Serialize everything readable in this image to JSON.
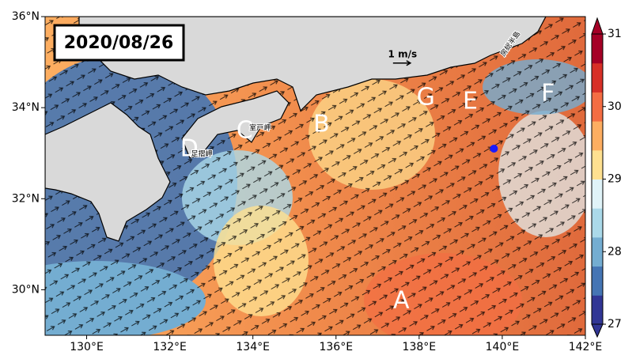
{
  "title": "2020/08/26",
  "xlim": [
    129,
    142
  ],
  "ylim": [
    29,
    36
  ],
  "xticks": [
    {
      "value": 130,
      "label": "130°E"
    },
    {
      "value": 132,
      "label": "132°E"
    },
    {
      "value": 134,
      "label": "134°E"
    },
    {
      "value": 136,
      "label": "136°E"
    },
    {
      "value": 138,
      "label": "138°E"
    },
    {
      "value": 140,
      "label": "140°E"
    },
    {
      "value": 142,
      "label": "142°E"
    }
  ],
  "yticks": [
    {
      "value": 30,
      "label": "30°N"
    },
    {
      "value": 32,
      "label": "32°N"
    },
    {
      "value": 34,
      "label": "34°N"
    },
    {
      "value": 36,
      "label": "36°N"
    }
  ],
  "colorbar": {
    "lim": [
      27,
      31
    ],
    "ticks": [
      27,
      28,
      29,
      30,
      31
    ],
    "colors": [
      "#313695",
      "#4575b4",
      "#74add1",
      "#abd9e9",
      "#e0f3f8",
      "#fee090",
      "#fdae61",
      "#f46d43",
      "#d73027",
      "#a50026"
    ]
  },
  "labels": [
    {
      "text": "A",
      "lon": 137.57,
      "lat": 29.75
    },
    {
      "text": "B",
      "lon": 135.65,
      "lat": 33.62
    },
    {
      "text": "C",
      "lon": 133.8,
      "lat": 33.48
    },
    {
      "text": "D",
      "lon": 132.47,
      "lat": 33.08
    },
    {
      "text": "E",
      "lon": 139.23,
      "lat": 34.12
    },
    {
      "text": "F",
      "lon": 141.1,
      "lat": 34.3
    },
    {
      "text": "G",
      "lon": 138.16,
      "lat": 34.21
    }
  ],
  "places": [
    {
      "text": "室戸岬",
      "lon": 134.17,
      "lat": 33.55
    },
    {
      "text": "足摺岬",
      "lon": 132.77,
      "lat": 32.98
    },
    {
      "text": "房総半島",
      "lon": 140.2,
      "lat": 35.4
    }
  ],
  "scale": {
    "text": "1 m/s",
    "lon": 137.6,
    "lat": 35.17
  },
  "marker": {
    "lon": 139.8,
    "lat": 33.1,
    "color": "#1a1aff"
  }
}
